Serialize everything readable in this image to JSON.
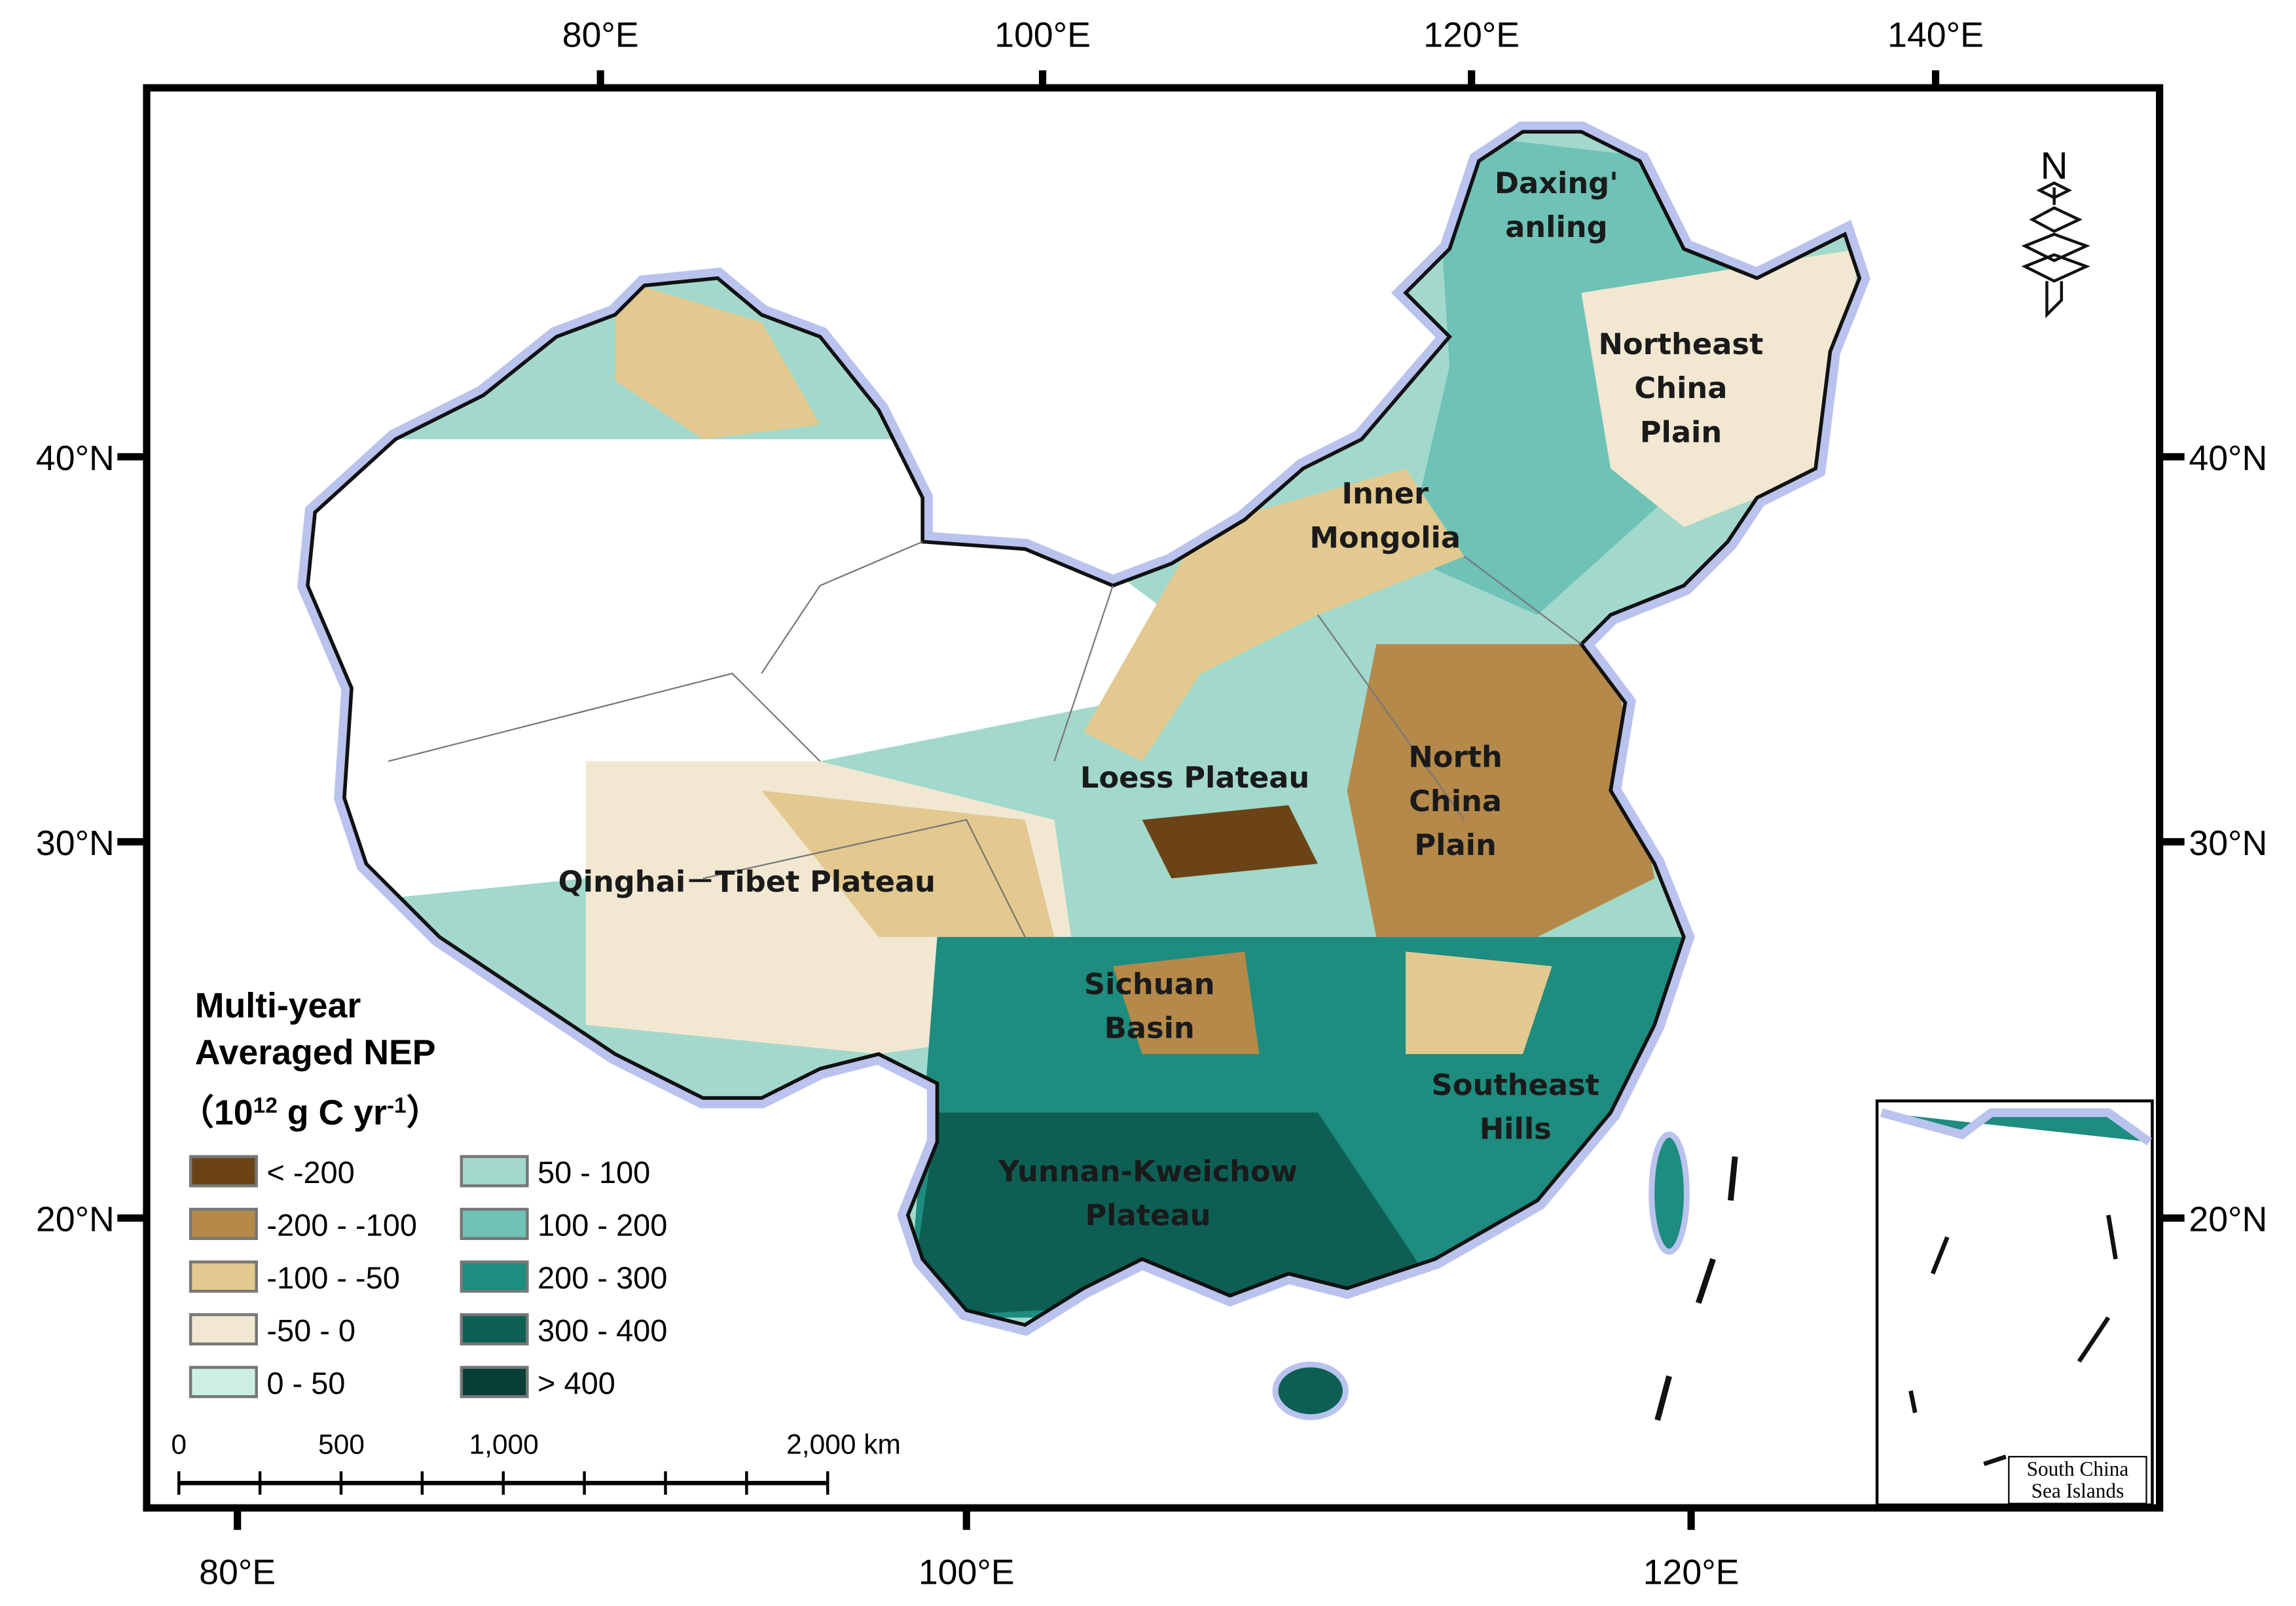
{
  "map": {
    "title_lines": [
      "Multi-year",
      "Averaged NEP"
    ],
    "unit": {
      "open": "（10",
      "exp": "12",
      "middle": " g C yr",
      "exp2": "-1",
      "close": "）"
    },
    "legend": [
      {
        "label": "< -200",
        "color": "#6b4316"
      },
      {
        "label": "-200 - -100",
        "color": "#b5894a"
      },
      {
        "label": "-100 - -50",
        "color": "#e3c98f"
      },
      {
        "label": "-50 - 0",
        "color": "#f2e8d2"
      },
      {
        "label": "0 - 50",
        "color": "#cdeee4"
      },
      {
        "label": "50 - 100",
        "color": "#a2d9cc"
      },
      {
        "label": "100 - 200",
        "color": "#6ec2b6"
      },
      {
        "label": "200 - 300",
        "color": "#1e8c7e"
      },
      {
        "label": "300 - 400",
        "color": "#0d5f54"
      },
      {
        "label": "> 400",
        "color": "#073f36"
      }
    ],
    "region_labels": [
      {
        "lines": [
          "Daxing'",
          "anling"
        ]
      },
      {
        "lines": [
          "Northeast",
          "China",
          "Plain"
        ]
      },
      {
        "lines": [
          "Inner",
          "Mongolia"
        ]
      },
      {
        "lines": [
          "Loess Plateau"
        ]
      },
      {
        "lines": [
          "North",
          "China",
          "Plain"
        ]
      },
      {
        "lines": [
          "Qinghai－Tibet Plateau"
        ]
      },
      {
        "lines": [
          "Sichuan",
          "Basin"
        ]
      },
      {
        "lines": [
          "Southeast",
          "Hills"
        ]
      },
      {
        "lines": [
          "Yunnan-Kweichow",
          "Plateau"
        ]
      }
    ],
    "lon_top": [
      "80°E",
      "100°E",
      "120°E",
      "140°E"
    ],
    "lat_left": [
      "40°N",
      "30°N",
      "20°N"
    ],
    "lat_right": [
      "40°N",
      "30°N",
      "20°N"
    ],
    "lon_bottom": [
      "80°E",
      "100°E",
      "120°E"
    ],
    "scale_bar": [
      "0",
      "500",
      "1,000",
      "2,000 km"
    ],
    "inset_label": [
      "South China",
      "Sea Islands"
    ],
    "north": "N"
  }
}
